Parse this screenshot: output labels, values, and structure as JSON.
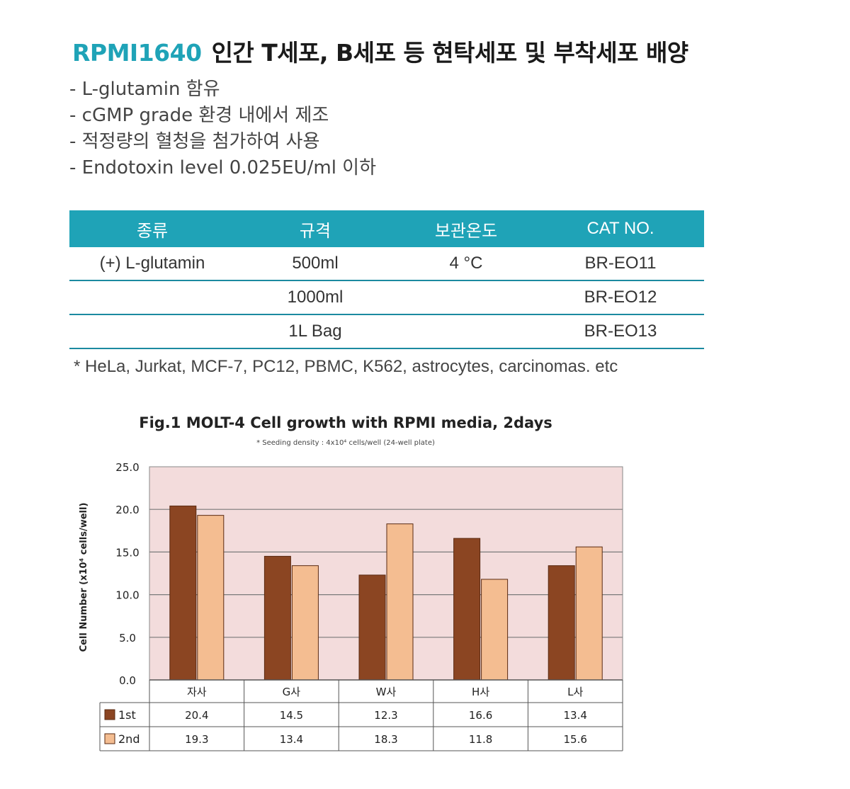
{
  "header": {
    "product": "RPMI1640",
    "subtitle": "인간 T세포, B세포 등 현탁세포 및 부착세포 배양"
  },
  "features": [
    "- L-glutamin 함유",
    "- cGMP grade 환경 내에서 제조",
    "- 적정량의 혈청을 첨가하여 사용",
    "- Endotoxin level 0.025EU/ml 이하"
  ],
  "spec_table": {
    "headers": [
      "종류",
      "규격",
      "보관온도",
      "CAT NO."
    ],
    "rows": [
      [
        "(+) L-glutamin",
        "500ml",
        "4 °C",
        "BR-EO11"
      ],
      [
        "",
        "1000ml",
        "",
        "BR-EO12"
      ],
      [
        "",
        "1L Bag",
        "",
        "BR-EO13"
      ]
    ]
  },
  "note": "* HeLa, Jurkat, MCF-7, PC12, PBMC, K562, astrocytes, carcinomas. etc",
  "colors": {
    "accent": "#1fa3b7",
    "series_1st": "#8b4522",
    "series_2nd": "#f4bd91",
    "plot_bg": "#f3dcdc"
  },
  "chart_data": {
    "type": "bar",
    "title": "Fig.1 MOLT-4 Cell growth with RPMI media, 2days",
    "subtitle": "* Seeding density : 4x10⁴ cells/well (24-well plate)",
    "ylabel": "Cell Number (x10⁴ cells/well)",
    "xlabel": "",
    "ylim": [
      0,
      25
    ],
    "yticks": [
      "0.0",
      "5.0",
      "10.0",
      "15.0",
      "20.0",
      "25.0"
    ],
    "grid": true,
    "categories": [
      "자사",
      "G사",
      "W사",
      "H사",
      "L사"
    ],
    "series": [
      {
        "name": "1st",
        "values": [
          20.4,
          14.5,
          12.3,
          16.6,
          13.4
        ],
        "labels": [
          "20.4",
          "14.5",
          "12.3",
          "16.6",
          "13.4"
        ]
      },
      {
        "name": "2nd",
        "values": [
          19.3,
          13.4,
          18.3,
          11.8,
          15.6
        ],
        "labels": [
          "19.3",
          "13.4",
          "18.3",
          "11.8",
          "15.6"
        ]
      }
    ]
  }
}
